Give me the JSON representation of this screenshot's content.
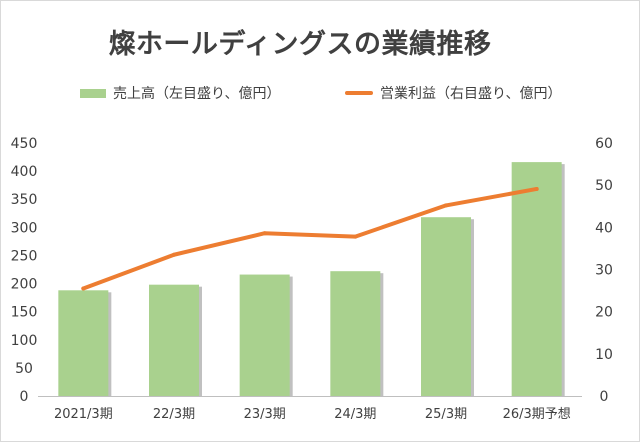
{
  "chart_data": {
    "type": "bar+line",
    "title": "燦ホールディングスの業績推移",
    "categories": [
      "2021/3期",
      "22/3期",
      "23/3期",
      "24/3期",
      "25/3期",
      "26/3期予想"
    ],
    "series": [
      {
        "name": "売上高（左目盛り、億円）",
        "type": "bar",
        "axis": "left",
        "color": "#a9d18e",
        "values": [
          188,
          198,
          216,
          222,
          318,
          416
        ]
      },
      {
        "name": "営業利益（右目盛り、億円）",
        "type": "line",
        "axis": "right",
        "color": "#ed7d31",
        "values": [
          25.5,
          33.5,
          38.6,
          37.8,
          45.2,
          49.1
        ]
      }
    ],
    "y_left": {
      "min": 0,
      "max": 450,
      "step": 50,
      "ticks": [
        "0",
        "50",
        "100",
        "150",
        "200",
        "250",
        "300",
        "350",
        "400",
        "450"
      ]
    },
    "y_right": {
      "min": 0,
      "max": 60,
      "step": 10,
      "ticks": [
        "0",
        "10",
        "20",
        "30",
        "40",
        "50",
        "60"
      ]
    },
    "legend_position": "top",
    "grid": false
  }
}
